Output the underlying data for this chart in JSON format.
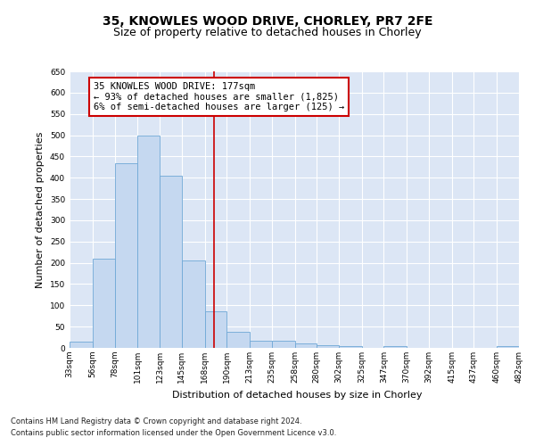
{
  "title_line1": "35, KNOWLES WOOD DRIVE, CHORLEY, PR7 2FE",
  "title_line2": "Size of property relative to detached houses in Chorley",
  "xlabel": "Distribution of detached houses by size in Chorley",
  "ylabel": "Number of detached properties",
  "bar_left_edges": [
    33,
    56,
    78,
    101,
    123,
    145,
    168,
    190,
    213,
    235,
    258,
    280,
    302,
    325,
    347,
    370,
    392,
    415,
    437,
    460
  ],
  "bar_widths": [
    23,
    22,
    23,
    22,
    22,
    23,
    22,
    23,
    22,
    23,
    22,
    22,
    23,
    22,
    23,
    22,
    23,
    22,
    23,
    22
  ],
  "bar_heights": [
    15,
    210,
    435,
    500,
    405,
    205,
    85,
    38,
    17,
    16,
    11,
    6,
    4,
    1,
    5,
    1,
    0,
    1,
    0,
    4
  ],
  "bar_color": "#c5d8f0",
  "bar_edge_color": "#6fa8d6",
  "vline_x": 177,
  "vline_color": "#cc0000",
  "ylim": [
    0,
    650
  ],
  "yticks": [
    0,
    50,
    100,
    150,
    200,
    250,
    300,
    350,
    400,
    450,
    500,
    550,
    600,
    650
  ],
  "xtick_labels": [
    "33sqm",
    "56sqm",
    "78sqm",
    "101sqm",
    "123sqm",
    "145sqm",
    "168sqm",
    "190sqm",
    "213sqm",
    "235sqm",
    "258sqm",
    "280sqm",
    "302sqm",
    "325sqm",
    "347sqm",
    "370sqm",
    "392sqm",
    "415sqm",
    "437sqm",
    "460sqm",
    "482sqm"
  ],
  "xtick_positions": [
    33,
    56,
    78,
    101,
    123,
    145,
    168,
    190,
    213,
    235,
    258,
    280,
    302,
    325,
    347,
    370,
    392,
    415,
    437,
    460,
    482
  ],
  "annotation_text": "35 KNOWLES WOOD DRIVE: 177sqm\n← 93% of detached houses are smaller (1,825)\n6% of semi-detached houses are larger (125) →",
  "annotation_box_color": "#cc0000",
  "annotation_bg": "#ffffff",
  "bg_color": "#dce6f5",
  "grid_color": "#ffffff",
  "footer_line1": "Contains HM Land Registry data © Crown copyright and database right 2024.",
  "footer_line2": "Contains public sector information licensed under the Open Government Licence v3.0.",
  "title_fontsize": 10,
  "subtitle_fontsize": 9,
  "axis_label_fontsize": 8,
  "tick_fontsize": 6.5,
  "annotation_fontsize": 7.5,
  "ylabel_fontsize": 8
}
